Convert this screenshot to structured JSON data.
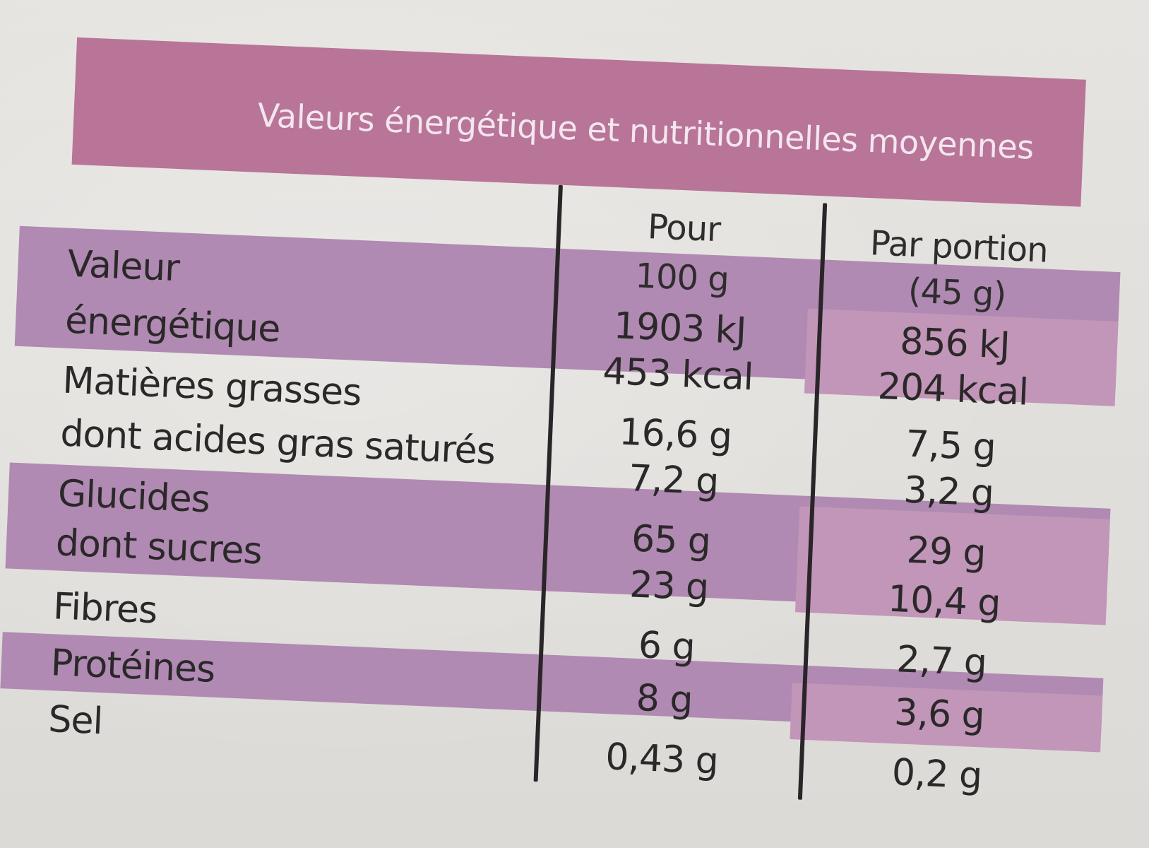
{
  "title": "Valeurs énergétique et nutritionnelles moyennes",
  "columns": {
    "per100_line1": "Pour",
    "per100_line2": "100 g",
    "portion_line1": "Par portion",
    "portion_line2": "(45 g)"
  },
  "rows": [
    {
      "label": "Valeur",
      "per100": "1903 kJ",
      "portion": "856 kJ"
    },
    {
      "label": "énergétique",
      "per100": "453 kcal",
      "portion": "204 kcal"
    },
    {
      "label": "Matières grasses",
      "per100": "16,6 g",
      "portion": "7,5 g"
    },
    {
      "label": "dont acides gras saturés",
      "per100": "7,2 g",
      "portion": "3,2 g"
    },
    {
      "label": "Glucides",
      "per100": "65 g",
      "portion": "29 g"
    },
    {
      "label": "dont sucres",
      "per100": "23 g",
      "portion": "10,4 g"
    },
    {
      "label": "Fibres",
      "per100": "6 g",
      "portion": "2,7 g"
    },
    {
      "label": "Protéines",
      "per100": "8 g",
      "portion": "3,6 g"
    },
    {
      "label": "Sel",
      "per100": "0,43 g",
      "portion": "0,2 g"
    }
  ],
  "colors": {
    "header_band": "#b87597",
    "row_band": "#b08ab2",
    "text": "#2b2829"
  }
}
